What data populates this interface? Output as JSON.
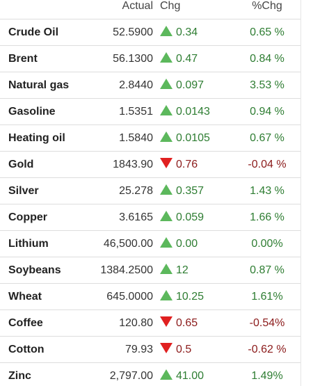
{
  "table": {
    "headers": {
      "name": "",
      "actual": "Actual",
      "chg": "Chg",
      "pct": "%Chg"
    },
    "rows": [
      {
        "name": "Crude Oil",
        "actual": "52.5900",
        "direction": "up",
        "chg": "0.34",
        "pct": "0.65 %"
      },
      {
        "name": "Brent",
        "actual": "56.1300",
        "direction": "up",
        "chg": "0.47",
        "pct": "0.84 %"
      },
      {
        "name": "Natural gas",
        "actual": "2.8440",
        "direction": "up",
        "chg": "0.097",
        "pct": "3.53 %"
      },
      {
        "name": "Gasoline",
        "actual": "1.5351",
        "direction": "up",
        "chg": "0.0143",
        "pct": "0.94 %"
      },
      {
        "name": "Heating oil",
        "actual": "1.5840",
        "direction": "up",
        "chg": "0.0105",
        "pct": "0.67 %"
      },
      {
        "name": "Gold",
        "actual": "1843.90",
        "direction": "down",
        "chg": "0.76",
        "pct": "-0.04 %"
      },
      {
        "name": "Silver",
        "actual": "25.278",
        "direction": "up",
        "chg": "0.357",
        "pct": "1.43 %"
      },
      {
        "name": "Copper",
        "actual": "3.6165",
        "direction": "up",
        "chg": "0.059",
        "pct": "1.66 %"
      },
      {
        "name": "Lithium",
        "actual": "46,500.00",
        "direction": "up",
        "chg": "0.00",
        "pct": "0.00%"
      },
      {
        "name": "Soybeans",
        "actual": "1384.2500",
        "direction": "up",
        "chg": "12",
        "pct": "0.87 %"
      },
      {
        "name": "Wheat",
        "actual": "645.0000",
        "direction": "up",
        "chg": "10.25",
        "pct": "1.61%"
      },
      {
        "name": "Coffee",
        "actual": "120.80",
        "direction": "down",
        "chg": "0.65",
        "pct": "-0.54%"
      },
      {
        "name": "Cotton",
        "actual": "79.93",
        "direction": "down",
        "chg": "0.5",
        "pct": "-0.62 %"
      },
      {
        "name": "Zinc",
        "actual": "2,797.00",
        "direction": "up",
        "chg": "41.00",
        "pct": "1.49%"
      }
    ]
  },
  "colors": {
    "up_text": "#2e7d32",
    "down_text": "#8b1a1a",
    "up_arrow": "#5cb85c",
    "down_arrow": "#e02020"
  },
  "icons": {
    "up": "triangle-up-icon",
    "down": "triangle-down-icon"
  }
}
